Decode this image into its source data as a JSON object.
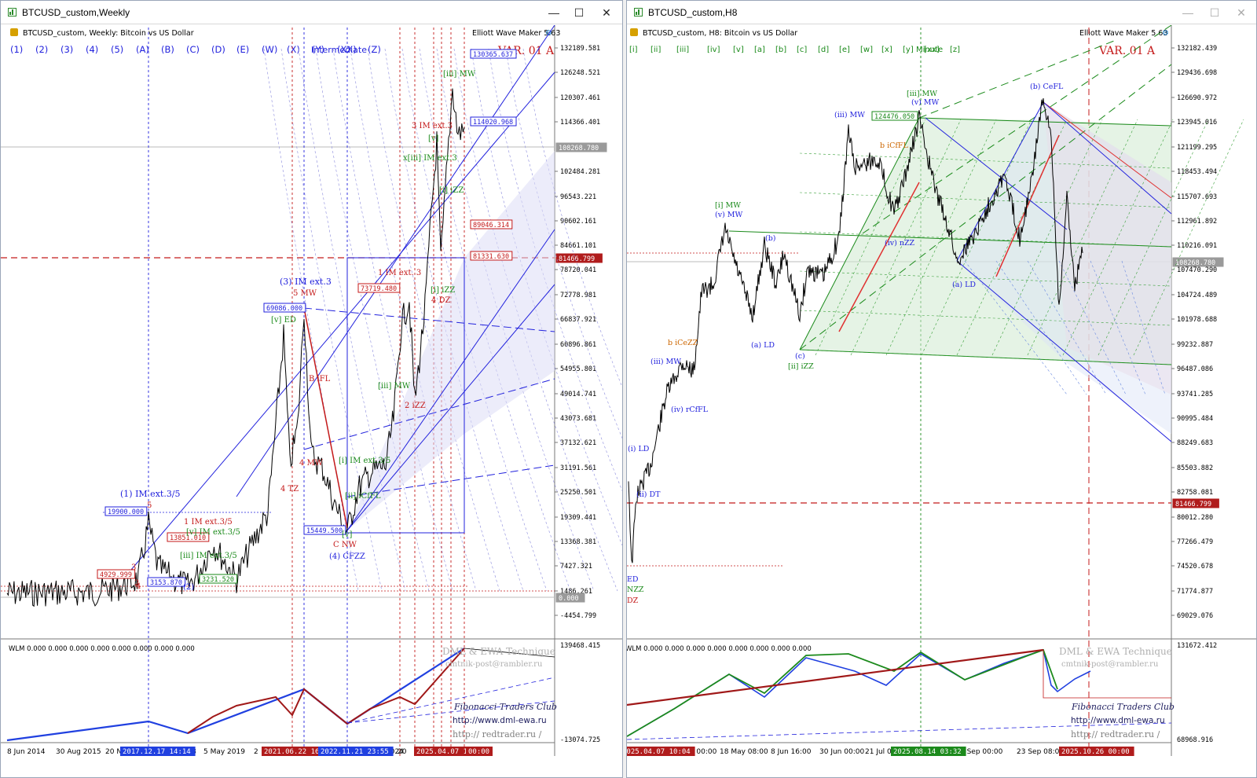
{
  "colors": {
    "blue": "#2222dd",
    "red": "#c41a1a",
    "green": "#1a8a1a",
    "orange": "#cc6600",
    "price_bg_red": "#b01c1c",
    "price_bg_gray": "#888888",
    "wlm_blue": "#2040e0",
    "wlm_red": "#a01818",
    "wlm_green": "#1c8a1c"
  },
  "left": {
    "window_title": "BTCUSD_custom,Weekly",
    "chart_caption": "BTCUSD_custom, Weekly:  Bitcoin vs US Dollar",
    "tool_name": "Elliott Wave Maker 5.63",
    "variant": "VAR. 01 A",
    "degree": "Intermediate",
    "degree_buttons": [
      "(1)",
      "(2)",
      "(3)",
      "(4)",
      "(5)",
      "(A)",
      "(B)",
      "(C)",
      "(D)",
      "(E)",
      "(W)",
      "(X)",
      "(Y)",
      "(XX)",
      "(Z)"
    ],
    "price_axis": [
      "132189.581",
      "126248.521",
      "120307.461",
      "114366.401",
      "108268.780",
      "102484.281",
      "96543.221",
      "90602.161",
      "84661.101",
      "81466.799",
      "78720.041",
      "72778.981",
      "66837.921",
      "60896.861",
      "54955.801",
      "49014.741",
      "43073.681",
      "37132.621",
      "31191.561",
      "25250.501",
      "19309.441",
      "13368.381",
      "7427.321",
      "1486.261",
      "0.000",
      "-4454.799"
    ],
    "boxes": [
      "130365.637",
      "114020.968",
      "89046.314",
      "81331.630",
      "73719.480",
      "69086.000",
      "19900.000",
      "13851.010",
      "4929.999",
      "3153.870",
      "3231.520",
      "15449.500"
    ],
    "wave_labels": [
      "[iii] MW",
      "3 IM ext.3",
      "x[iii] IM ext.3",
      "[i] iZZ",
      "[v]",
      "1 IM ext. 3",
      "(3) IM ext.3",
      "5 MW",
      "[v] ED",
      "B iFL",
      "4 MW",
      "4 TZ",
      "C NW",
      "(4) CFZZ",
      "[i] IM ext.3/5",
      "[ii] iCfFL",
      "2 iZZ",
      "[iii] MW",
      "[i] iZZ",
      "4 DZ",
      "(1) IM ext.3/5",
      "1 IM ext.3/5",
      "[v] IM ext.3/5",
      "[iii] IM ext.3/5",
      "2",
      "3",
      "4",
      "(2)",
      "5",
      "[v]"
    ],
    "indicator_label": "WLM 0.000 0.000 0.000 0.000 0.000 0.000 0.000 0.000",
    "ind_axis": [
      "139468.415",
      "-13074.725"
    ],
    "watermark": [
      "DML & EWA Technique",
      "cmtnik-post@rambler.ru",
      "Fibonacci   Traders   Club",
      "http://www.dml-ewa.ru",
      "http://  redtrader.ru  /"
    ],
    "time_axis": [
      "8 Jun 2014",
      "30 Aug 2015",
      "20 N",
      "2018",
      "5 May 2019",
      "2",
      "2024",
      "20",
      "25"
    ],
    "time_tags": [
      "2017.12.17 14:14",
      "2021.06.22 16:55",
      "2022.11.21 23:55",
      "2025.04.07 10:04",
      "00:00"
    ]
  },
  "right": {
    "window_title": "BTCUSD_custom,H8",
    "chart_caption": "BTCUSD_custom, H8:  Bitcoin vs US Dollar",
    "tool_name": "Elliott Wave Maker 5.63",
    "variant": "VAR. 01 A",
    "degree": "Minute",
    "degree_buttons": [
      "[i]",
      "[ii]",
      "[iii]",
      "[iv]",
      "[v]",
      "[a]",
      "[b]",
      "[c]",
      "[d]",
      "[e]",
      "[w]",
      "[x]",
      "[y]",
      "[xx]",
      "[z]"
    ],
    "price_axis": [
      "132182.439",
      "129436.698",
      "126690.972",
      "123945.016",
      "121199.295",
      "118453.494",
      "115707.693",
      "112961.892",
      "110216.091",
      "108268.780",
      "107470.290",
      "104724.489",
      "101978.688",
      "99232.887",
      "96487.086",
      "93741.285",
      "90995.484",
      "88249.683",
      "85503.882",
      "82758.081",
      "81466.799",
      "80012.280",
      "77266.479",
      "74520.678",
      "71774.877",
      "69029.076"
    ],
    "boxes": [
      "124476.050"
    ],
    "wave_labels": [
      "[iii] MW",
      "(v) MW",
      "(iii) MW",
      "b iCfFL",
      "(b) CeFL",
      "(iv) nZZ",
      "[i] MW",
      "(v) MW",
      "(b)",
      "(a) LD",
      "(c)",
      "[ii] iZZ",
      "(a) LD",
      "(iii) MW",
      "b iCeZZ",
      "(iv) rCfFL",
      "(i) LD",
      "(ii) DT",
      "ED",
      "NZZ",
      "DZ"
    ],
    "indicator_label": "WLM 0.000 0.000 0.000 0.000 0.000 0.000 0.000 0.000",
    "ind_axis": [
      "131672.412",
      "68968.916"
    ],
    "watermark": [
      "DML & EWA Technique",
      "cmtnik-post@rambler.ru",
      "Fibonacci   Traders   Club",
      "http://www.dml-ewa.ru",
      "http://  redtrader.ru  /"
    ],
    "time_axis": [
      "Apr 00:00",
      "18 May 08:00",
      "8 Jun 16:00",
      "30 Jun 00:00",
      "21 Jul 0",
      "2 Sep 00:00",
      "23 Sep 08:00"
    ],
    "time_tags": [
      "2025.04.07 10:04",
      "2025.08.14 03:32",
      "2025.10.26 00:00"
    ]
  }
}
